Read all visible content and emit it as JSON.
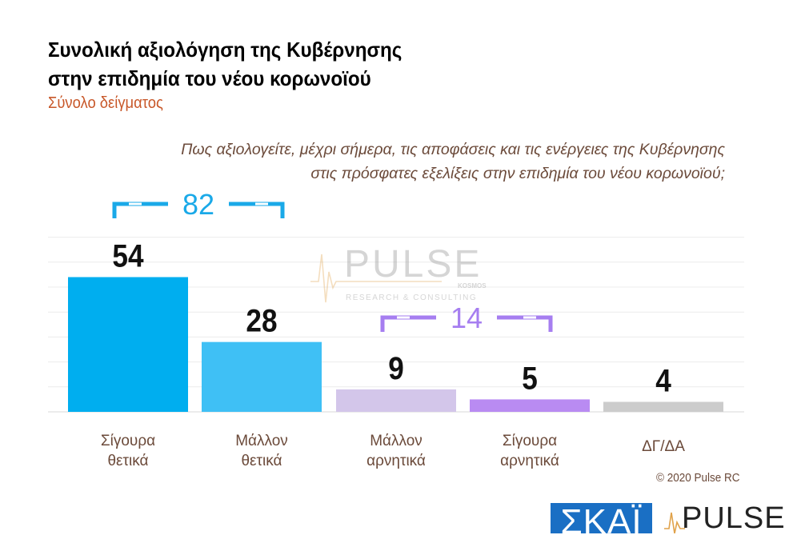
{
  "title": {
    "line1": "Συνολική αξιολόγηση της Κυβέρνησης",
    "line2": "στην επιδημία του νέου κορωνοϊού"
  },
  "subtitle": "Σύνολο δείγματος",
  "question": {
    "line1": "Πως αξιολογείτε, μέχρι σήμερα, τις αποφάσεις και τις ενέργειες της Κυβέρνησης",
    "line2": "στις πρόσφατες εξελίξεις στην επιδημία του νέου κορωνοϊού;"
  },
  "chart_data": {
    "type": "bar",
    "categories": [
      [
        "Σίγουρα",
        "θετικά"
      ],
      [
        "Μάλλον",
        "θετικά"
      ],
      [
        "Μάλλον",
        "αρνητικά"
      ],
      [
        "Σίγουρα",
        "αρνητικά"
      ],
      [
        "ΔΓ/ΔΑ"
      ]
    ],
    "values": [
      54,
      28,
      9,
      5,
      4
    ],
    "colors": [
      "#00aeef",
      "#3fc0f5",
      "#d3c6ea",
      "#b98bf2",
      "#cccccc"
    ],
    "ylim": [
      0,
      70
    ],
    "grid": true,
    "brackets": [
      {
        "label": "82",
        "from": 0,
        "to": 1,
        "color": "#1aa9e8"
      },
      {
        "label": "14",
        "from": 2,
        "to": 3,
        "color": "#a67ef0"
      }
    ]
  },
  "watermark": {
    "brand": "PULSE",
    "partner": "KOSMOS",
    "tagline": "RESEARCH & CONSULTING"
  },
  "copyright": "© 2020 Pulse RC",
  "logos": {
    "skai": "ΣΚΑΪ",
    "pulse": "PULSE"
  }
}
